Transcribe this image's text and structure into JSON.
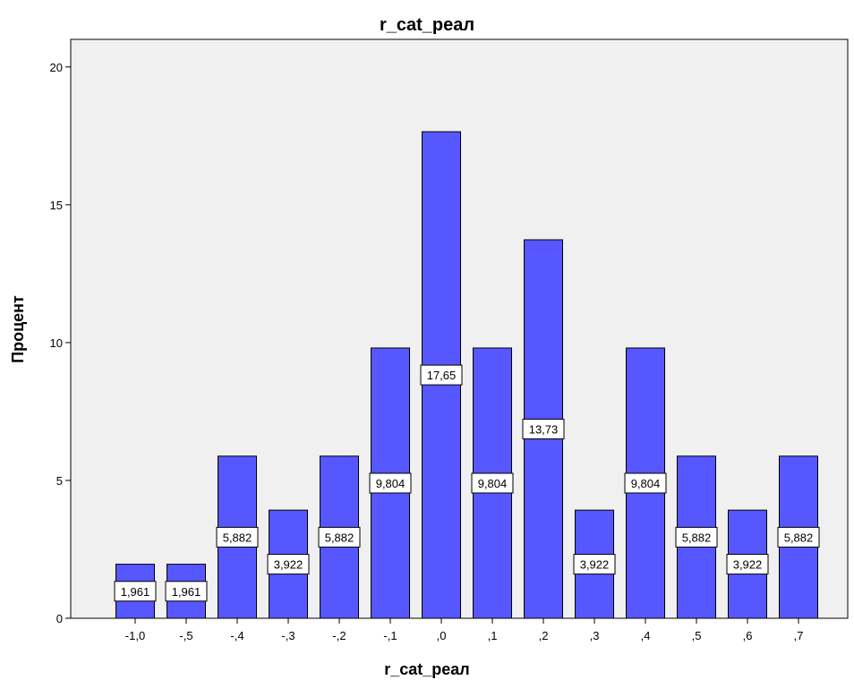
{
  "chart_data": {
    "type": "bar",
    "title": "r_cat_реал",
    "xlabel": "r_cat_реал",
    "ylabel": "Процент",
    "categories": [
      "-1,0",
      "-,5",
      "-,4",
      "-,3",
      "-,2",
      "-,1",
      ",0",
      ",1",
      ",2",
      ",3",
      ",4",
      ",5",
      ",6",
      ",7"
    ],
    "values": [
      1.961,
      1.961,
      5.882,
      3.922,
      5.882,
      9.804,
      17.65,
      9.804,
      13.73,
      3.922,
      9.804,
      5.882,
      3.922,
      5.882
    ],
    "data_labels": [
      "1,961",
      "1,961",
      "5,882",
      "3,922",
      "5,882",
      "9,804",
      "17,65",
      "9,804",
      "13,73",
      "3,922",
      "9,804",
      "5,882",
      "3,922",
      "5,882"
    ],
    "yticks": [
      0,
      5,
      10,
      15,
      20
    ],
    "ytick_labels": [
      "0",
      "5",
      "10",
      "15",
      "20"
    ],
    "ylim": [
      0,
      21
    ],
    "grid": false,
    "legend": "none",
    "colors": {
      "bar_fill": "#5757ff",
      "bar_stroke": "#000000",
      "plot_background": "#f0f0f0",
      "label_box_fill": "#ffffff"
    }
  }
}
